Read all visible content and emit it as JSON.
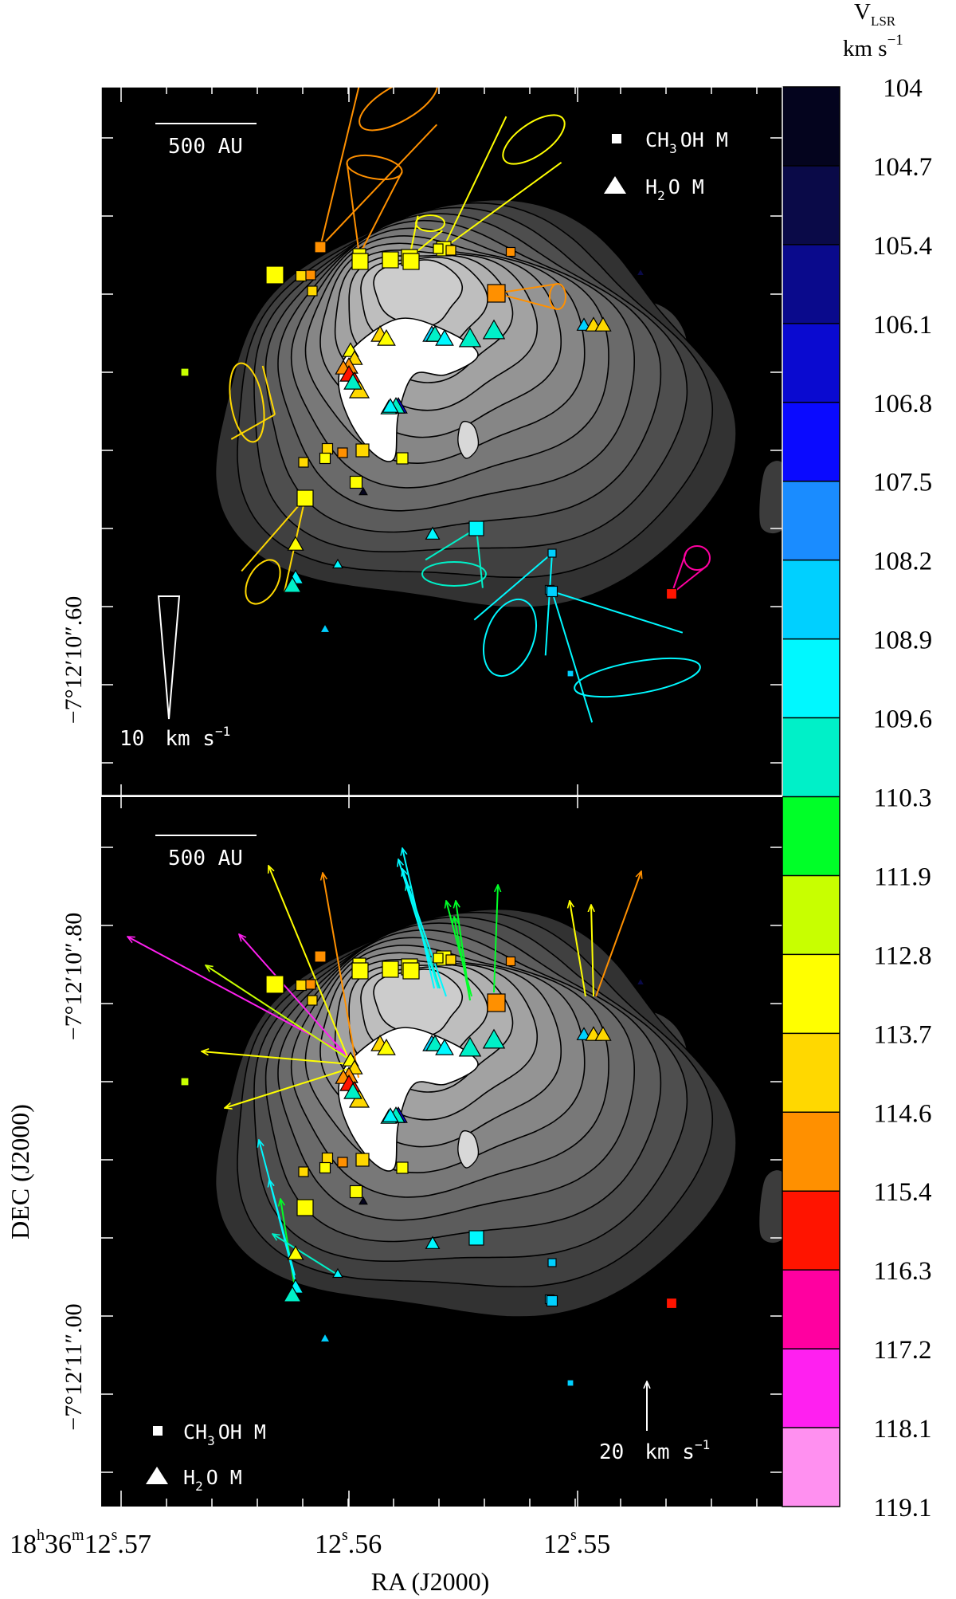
{
  "chart_data": {
    "type": "scatter",
    "xlabel": "RA (J2000)",
    "ylabel": "DEC (J2000)",
    "x_ticks": [
      {
        "sup": "h",
        "sup2": "m",
        "sup3": "s",
        "parts": [
          "18",
          "36",
          "12",
          ".57"
        ]
      },
      {
        "sup": "s",
        "parts": [
          "12",
          ".56"
        ]
      },
      {
        "sup": "s",
        "parts": [
          "12",
          ".55"
        ]
      }
    ],
    "y_ticks_top": [
      "−7°12′10″.60"
    ],
    "y_ticks_bottom": [
      "−7°12′10″.80",
      "−7°12′11″.00"
    ],
    "colorbar": {
      "title_main": "V",
      "title_sub": "LSR",
      "unit": "km s",
      "unit_exp": "−1",
      "levels": [
        "104",
        "104.7",
        "105.4",
        "106.1",
        "106.8",
        "107.5",
        "108.2",
        "108.9",
        "109.6",
        "110.3",
        "111.9",
        "112.8",
        "113.7",
        "114.6",
        "115.4",
        "116.3",
        "117.2",
        "118.1",
        "119.1"
      ],
      "colors": [
        "#04041e",
        "#0a0a48",
        "#0a0a8c",
        "#0a0ad0",
        "#0a0aff",
        "#1a8cff",
        "#00d0ff",
        "#00f8ff",
        "#00f0c8",
        "#00ff28",
        "#c8ff00",
        "#ffff00",
        "#ffd800",
        "#ff9000",
        "#ff1400",
        "#ff00a0",
        "#ff20f0",
        "#ff90f0"
      ]
    },
    "panels": [
      {
        "scale_bar": "500 AU",
        "legend": {
          "meth": "CH",
          "meth_sub": "3",
          "meth_tail": "OH M",
          "water": "H",
          "water_sub": "2",
          "water_tail": "O M"
        },
        "vel_ref": {
          "value": "10",
          "unit": "km s",
          "exp": "−1"
        }
      },
      {
        "scale_bar": "500 AU",
        "legend": {
          "meth": "CH",
          "meth_sub": "3",
          "meth_tail": "OH M",
          "water": "H",
          "water_sub": "2",
          "water_tail": "O M"
        },
        "vel_ref": {
          "value": "20",
          "unit": "km s",
          "exp": "−1"
        }
      }
    ],
    "maser_vlsr": {
      "ch3oh": [
        115.4,
        114.6,
        113.7,
        114.6,
        113.7,
        113.7,
        113.7,
        115.4,
        113.7,
        114.6,
        115.4,
        113.7,
        113.7,
        113.7,
        113.7,
        112.8,
        114.6,
        114.6,
        115.4,
        113.7,
        108.9,
        110.3,
        109.6,
        108.9,
        108.9,
        108.9,
        116.3
      ],
      "h2o": [
        113.7,
        114.6,
        113.7,
        115.4,
        115.4,
        116.3,
        114.6,
        113.7,
        108.9,
        109.6,
        110.3,
        110.3,
        107.5,
        110.3,
        106.8,
        108.9,
        110.3,
        110.3,
        114.6,
        114.6,
        113.7,
        109.6,
        109.6,
        108.9,
        109.6,
        105.4,
        104.7,
        115.4
      ]
    }
  }
}
